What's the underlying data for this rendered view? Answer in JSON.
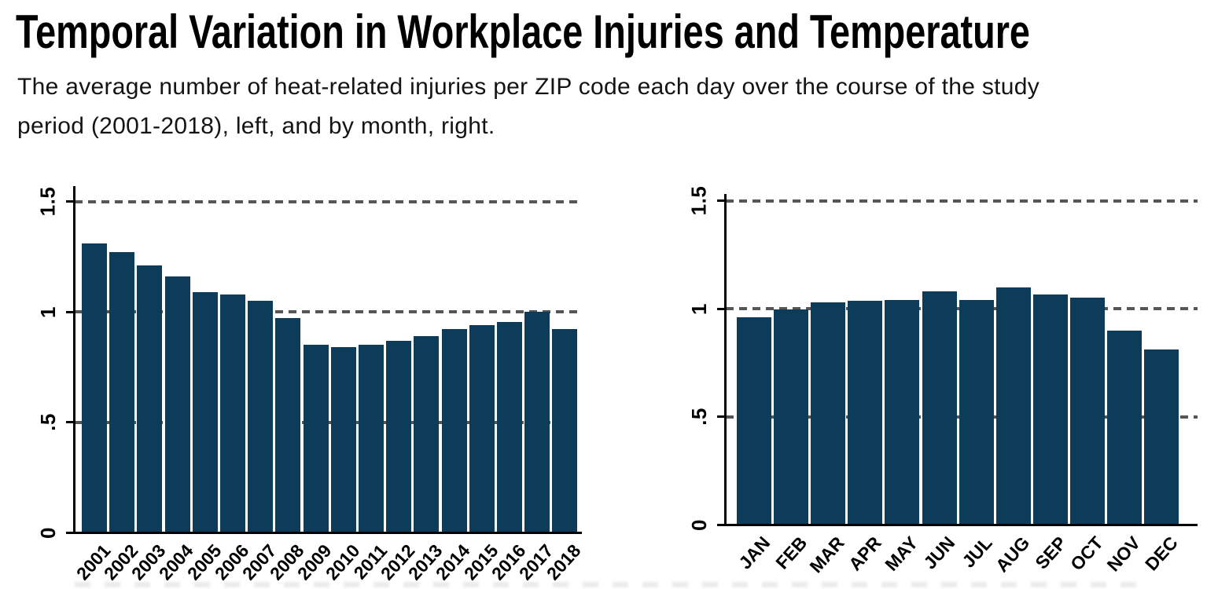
{
  "page": {
    "title": "Temporal Variation in Workplace Injuries and Temperature",
    "subtitle_line1": "The average number of heat-related injuries per ZIP code each day over the course of the study",
    "subtitle_line2": "period (2001-2018), left, and by month, right."
  },
  "colors": {
    "bar": "#0d3b5a",
    "gridline": "#565656",
    "axis": "#000000",
    "title_text": "#000000",
    "subtitle_text": "#141414"
  },
  "chart_data": [
    {
      "id": "by_year",
      "type": "bar",
      "title": "",
      "xlabel": "",
      "ylabel": "",
      "categories": [
        "2001",
        "2002",
        "2003",
        "2004",
        "2005",
        "2006",
        "2007",
        "2008",
        "2009",
        "2010",
        "2011",
        "2012",
        "2013",
        "2014",
        "2015",
        "2016",
        "2017",
        "2018"
      ],
      "values": [
        1.31,
        1.27,
        1.21,
        1.16,
        1.09,
        1.08,
        1.05,
        0.97,
        0.85,
        0.84,
        0.85,
        0.87,
        0.89,
        0.92,
        0.94,
        0.955,
        1.0,
        0.92
      ],
      "ytick_labels": [
        "0",
        ".5",
        "1",
        "1.5"
      ],
      "ytick_values": [
        0,
        0.5,
        1,
        1.5
      ],
      "ylim": [
        0,
        1.57
      ],
      "grid": "horizontal dashed lines at 0.5, 1, 1.5 behind bars",
      "legend": "none",
      "xtick_rotation_deg": -48
    },
    {
      "id": "by_month",
      "type": "bar",
      "title": "",
      "xlabel": "",
      "ylabel": "",
      "categories": [
        "JAN",
        "FEB",
        "MAR",
        "APR",
        "MAY",
        "JUN",
        "JUL",
        "AUG",
        "SEP",
        "OCT",
        "NOV",
        "DEC"
      ],
      "values": [
        0.96,
        0.995,
        1.03,
        1.035,
        1.04,
        1.08,
        1.04,
        1.1,
        1.065,
        1.05,
        0.9,
        0.81
      ],
      "ytick_labels": [
        "0",
        ".5",
        "1",
        "1.5"
      ],
      "ytick_values": [
        0,
        0.5,
        1,
        1.5
      ],
      "ylim": [
        0,
        1.53
      ],
      "grid": "horizontal dashed lines at 0.5, 1, 1.5 behind bars",
      "legend": "none",
      "xtick_rotation_deg": -48
    }
  ]
}
